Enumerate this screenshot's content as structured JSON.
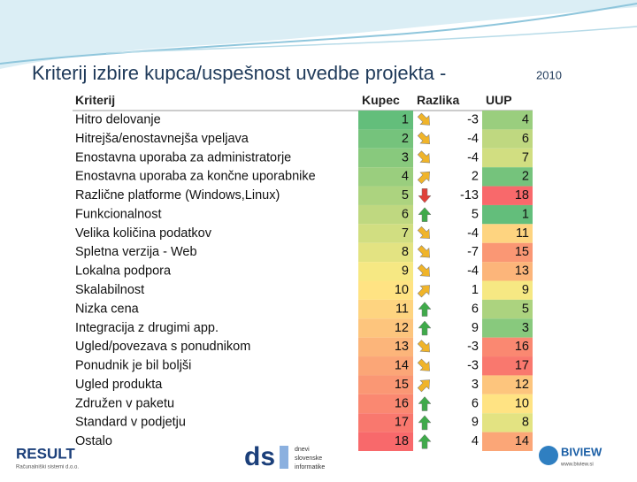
{
  "title": "Kriterij izbire kupca/uspešnost uvedbe projekta -",
  "year": "2010",
  "table": {
    "header": [
      "Kriterij",
      "Kupec",
      "Razlika",
      "UUP"
    ],
    "rows": [
      [
        "Hitro delovanje",
        1,
        -3,
        4
      ],
      [
        "Hitrejša/enostavnejša vpeljava",
        2,
        -4,
        6
      ],
      [
        "Enostavna uporaba za administratorje",
        3,
        -4,
        7
      ],
      [
        "Enostavna uporaba za končne uporabnike",
        4,
        2,
        2
      ],
      [
        "Različne platforme (Windows,Linux)",
        5,
        -13,
        18
      ],
      [
        "Funkcionalnost",
        6,
        5,
        1
      ],
      [
        "Velika količina podatkov",
        7,
        -4,
        11
      ],
      [
        "Spletna verzija - Web",
        8,
        -7,
        15
      ],
      [
        "Lokalna podpora",
        9,
        -4,
        13
      ],
      [
        "Skalabilnost",
        10,
        1,
        9
      ],
      [
        "Nizka cena",
        11,
        6,
        5
      ],
      [
        "Integracija z drugimi app.",
        12,
        9,
        3
      ],
      [
        "Ugled/povezava s ponudnikom",
        13,
        -3,
        16
      ],
      [
        "Ponudnik je bil boljši",
        14,
        -3,
        17
      ],
      [
        "Ugled produkta",
        15,
        3,
        12
      ],
      [
        "Združen v paketu",
        16,
        6,
        10
      ],
      [
        "Standard v podjetju",
        17,
        9,
        8
      ],
      [
        "Ostalo",
        18,
        4,
        14
      ]
    ]
  },
  "logos": {
    "result": "RESULT",
    "result_sub": "Računalniški sistemi d.o.o.",
    "ds": "ds",
    "ds_sub": [
      "dnevi",
      "slovenske",
      "informatike"
    ],
    "biview": "BIVIEW",
    "biview_sub": "www.biview.si"
  }
}
